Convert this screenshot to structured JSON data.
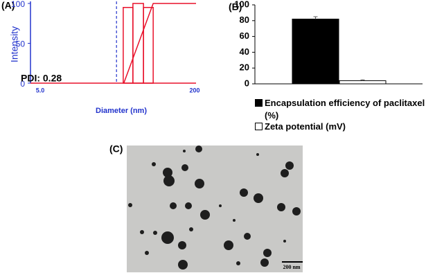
{
  "chart_data": [
    {
      "type": "histogram",
      "label": "(A)",
      "xlabel": "Diameter (nm)",
      "ylabel": "Intensity",
      "xscale": "log",
      "xlim": [
        5,
        200
      ],
      "xticks": [
        {
          "value": 5,
          "label": "5.0"
        },
        200
      ],
      "ylim": [
        0,
        100
      ],
      "yticks": [
        0,
        50,
        100
      ],
      "bins": [
        39.5,
        49,
        62,
        77
      ],
      "values": [
        95,
        100,
        95
      ],
      "color": "#e8102a",
      "cumulative": {
        "x": [
          40,
          77,
          200
        ],
        "values": [
          0,
          100,
          100
        ],
        "color": "#e8102a"
      },
      "vline": 34,
      "vline_color": "#2233cc",
      "annotation": "PDI: 0.28",
      "axis_color": "#2233cc"
    },
    {
      "type": "bar",
      "label": "(B)",
      "ylim": [
        0,
        100
      ],
      "yticks": [
        0,
        20,
        40,
        60,
        80,
        100
      ],
      "categories": [
        null
      ],
      "series": [
        {
          "name": "Encapsulation efficiency of paclitaxel (%)",
          "color": "#000000",
          "values": [
            82
          ],
          "errors": [
            3
          ]
        },
        {
          "name": "Zeta potential (mV)",
          "color": "#ffffff",
          "values": [
            4
          ],
          "errors": [
            1
          ]
        }
      ]
    }
  ],
  "image": {
    "label": "(C)",
    "scale_bar": "200 nm"
  }
}
